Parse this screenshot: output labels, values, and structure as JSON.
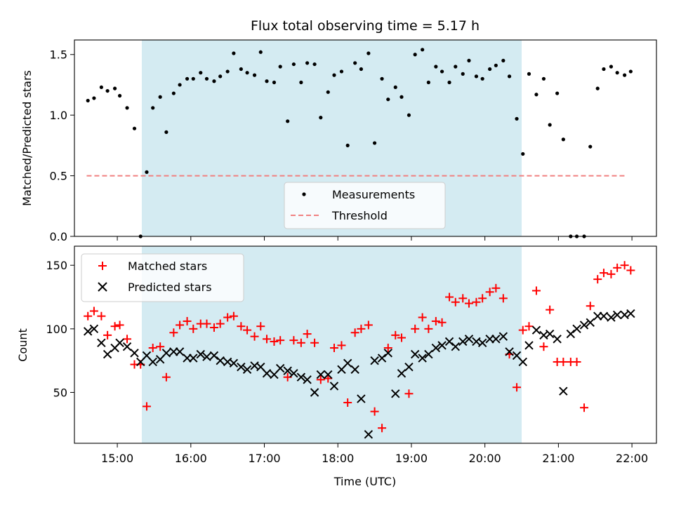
{
  "chart_data": [
    {
      "type": "scatter",
      "title": "Flux total observing time = 5.17 h",
      "xlabel": "",
      "ylabel": "Matched/Predicted stars",
      "ylim": [
        0,
        1.62
      ],
      "xlim": [
        "14:25",
        "22:20"
      ],
      "yticks": [
        0.0,
        0.5,
        1.0,
        1.5
      ],
      "ytick_labels": [
        "0.0",
        "0.5",
        "1.0",
        "1.5"
      ],
      "shaded_region": {
        "start": "15:20",
        "end": "20:30",
        "color": "#d4ebf2"
      },
      "threshold": {
        "name": "Threshold",
        "value": 0.5,
        "start": "14:35",
        "end": "21:55",
        "color": "#f08080"
      },
      "legend": {
        "position": "lower-center",
        "entries": [
          "Measurements",
          "Threshold"
        ]
      },
      "series": [
        {
          "name": "Measurements",
          "marker": "dot",
          "color": "#000000",
          "x": [
            "14:36",
            "14:41",
            "14:47",
            "14:52",
            "14:58",
            "15:02",
            "15:08",
            "15:14",
            "15:19",
            "15:24",
            "15:29",
            "15:35",
            "15:40",
            "15:46",
            "15:51",
            "15:57",
            "16:02",
            "16:08",
            "16:13",
            "16:19",
            "16:24",
            "16:30",
            "16:35",
            "16:41",
            "16:46",
            "16:52",
            "16:57",
            "17:02",
            "17:08",
            "17:13",
            "17:19",
            "17:24",
            "17:30",
            "17:35",
            "17:41",
            "17:46",
            "17:52",
            "17:57",
            "18:03",
            "18:08",
            "18:14",
            "18:19",
            "18:25",
            "18:30",
            "18:36",
            "18:41",
            "18:47",
            "18:52",
            "18:58",
            "19:03",
            "19:09",
            "19:14",
            "19:20",
            "19:25",
            "19:31",
            "19:36",
            "19:42",
            "19:47",
            "19:53",
            "19:58",
            "20:04",
            "20:09",
            "20:15",
            "20:20",
            "20:26",
            "20:31",
            "20:36",
            "20:42",
            "20:48",
            "20:53",
            "20:59",
            "21:04",
            "21:10",
            "21:15",
            "21:21",
            "21:26",
            "21:32",
            "21:37",
            "21:43",
            "21:48",
            "21:54",
            "21:59"
          ],
          "y": [
            1.12,
            1.14,
            1.23,
            1.2,
            1.22,
            1.16,
            1.06,
            0.89,
            0.0,
            0.53,
            1.06,
            1.15,
            0.86,
            1.18,
            1.25,
            1.3,
            1.3,
            1.35,
            1.3,
            1.28,
            1.32,
            1.36,
            1.51,
            1.38,
            1.35,
            1.33,
            1.52,
            1.28,
            1.27,
            1.4,
            0.95,
            1.42,
            1.27,
            1.43,
            1.42,
            0.98,
            1.19,
            1.33,
            1.36,
            0.75,
            1.43,
            1.38,
            1.51,
            0.77,
            1.3,
            1.13,
            1.23,
            1.15,
            1.0,
            1.5,
            1.54,
            1.27,
            1.4,
            1.36,
            1.27,
            1.4,
            1.34,
            1.45,
            1.32,
            1.3,
            1.38,
            1.41,
            1.45,
            1.32,
            0.97,
            0.68,
            1.34,
            1.17,
            1.3,
            0.92,
            1.18,
            0.8,
            0.0,
            0.0,
            0.0,
            0.74,
            1.22,
            1.38,
            1.4,
            1.35,
            1.33,
            1.36
          ]
        }
      ]
    },
    {
      "type": "scatter",
      "title": "",
      "xlabel": "Time (UTC)",
      "ylabel": "Count",
      "ylim": [
        10,
        165
      ],
      "xlim": [
        "14:25",
        "22:20"
      ],
      "yticks": [
        50,
        100,
        150
      ],
      "ytick_labels": [
        "50",
        "100",
        "150"
      ],
      "xtick_labels": [
        "15:00",
        "16:00",
        "17:00",
        "18:00",
        "19:00",
        "20:00",
        "21:00",
        "22:00"
      ],
      "shaded_region": {
        "start": "15:20",
        "end": "20:30",
        "color": "#d4ebf2"
      },
      "legend": {
        "position": "top-left",
        "entries": [
          "Matched stars",
          "Predicted stars"
        ]
      },
      "series": [
        {
          "name": "Matched stars",
          "marker": "plus",
          "color": "#ff0000",
          "x": [
            "14:36",
            "14:41",
            "14:47",
            "14:52",
            "14:58",
            "15:02",
            "15:08",
            "15:14",
            "15:19",
            "15:24",
            "15:29",
            "15:35",
            "15:40",
            "15:46",
            "15:51",
            "15:57",
            "16:02",
            "16:08",
            "16:13",
            "16:19",
            "16:24",
            "16:30",
            "16:35",
            "16:41",
            "16:46",
            "16:52",
            "16:57",
            "17:02",
            "17:08",
            "17:13",
            "17:19",
            "17:24",
            "17:30",
            "17:35",
            "17:41",
            "17:46",
            "17:52",
            "17:57",
            "18:03",
            "18:08",
            "18:14",
            "18:19",
            "18:25",
            "18:30",
            "18:36",
            "18:41",
            "18:47",
            "18:52",
            "18:58",
            "19:03",
            "19:09",
            "19:14",
            "19:20",
            "19:25",
            "19:31",
            "19:36",
            "19:42",
            "19:47",
            "19:53",
            "19:58",
            "20:04",
            "20:09",
            "20:15",
            "20:20",
            "20:26",
            "20:31",
            "20:36",
            "20:42",
            "20:48",
            "20:53",
            "20:59",
            "21:04",
            "21:10",
            "21:15",
            "21:21",
            "21:26",
            "21:32",
            "21:37",
            "21:43",
            "21:48",
            "21:54",
            "21:59"
          ],
          "y": [
            110,
            114,
            110,
            95,
            102,
            103,
            92,
            72,
            72,
            39,
            85,
            86,
            62,
            97,
            103,
            106,
            100,
            104,
            104,
            101,
            104,
            109,
            110,
            102,
            99,
            94,
            102,
            92,
            90,
            91,
            62,
            91,
            89,
            96,
            89,
            60,
            61,
            85,
            87,
            42,
            97,
            100,
            103,
            35,
            22,
            85,
            95,
            93,
            49,
            100,
            109,
            100,
            106,
            105,
            125,
            121,
            124,
            120,
            121,
            124,
            129,
            132,
            124,
            80,
            54,
            99,
            102,
            130,
            86,
            115,
            74,
            74,
            74,
            74,
            38,
            118,
            139,
            144,
            143,
            148,
            150,
            146
          ]
        },
        {
          "name": "Predicted stars",
          "marker": "x",
          "color": "#000000",
          "x": [
            "14:36",
            "14:41",
            "14:47",
            "14:52",
            "14:58",
            "15:02",
            "15:08",
            "15:14",
            "15:19",
            "15:24",
            "15:29",
            "15:35",
            "15:40",
            "15:46",
            "15:51",
            "15:57",
            "16:02",
            "16:08",
            "16:13",
            "16:19",
            "16:24",
            "16:30",
            "16:35",
            "16:41",
            "16:46",
            "16:52",
            "16:57",
            "17:02",
            "17:08",
            "17:13",
            "17:19",
            "17:24",
            "17:30",
            "17:35",
            "17:41",
            "17:46",
            "17:52",
            "17:57",
            "18:03",
            "18:08",
            "18:14",
            "18:19",
            "18:25",
            "18:30",
            "18:36",
            "18:41",
            "18:47",
            "18:52",
            "18:58",
            "19:03",
            "19:09",
            "19:14",
            "19:20",
            "19:25",
            "19:31",
            "19:36",
            "19:42",
            "19:47",
            "19:53",
            "19:58",
            "20:04",
            "20:09",
            "20:15",
            "20:20",
            "20:26",
            "20:31",
            "20:36",
            "20:42",
            "20:48",
            "20:53",
            "20:59",
            "21:04",
            "21:10",
            "21:15",
            "21:21",
            "21:26",
            "21:32",
            "21:37",
            "21:43",
            "21:48",
            "21:54",
            "21:59"
          ],
          "y": [
            98,
            100,
            89,
            80,
            85,
            89,
            86,
            81,
            74,
            79,
            74,
            76,
            81,
            82,
            82,
            77,
            77,
            80,
            78,
            79,
            75,
            74,
            73,
            70,
            68,
            71,
            70,
            65,
            64,
            69,
            67,
            65,
            62,
            60,
            50,
            64,
            64,
            55,
            68,
            73,
            68,
            45,
            17,
            75,
            77,
            81,
            49,
            65,
            70,
            80,
            77,
            80,
            85,
            87,
            90,
            86,
            90,
            92,
            90,
            89,
            92,
            92,
            94,
            82,
            79,
            74,
            87,
            99,
            95,
            96,
            92,
            51,
            96,
            100,
            103,
            105,
            110,
            110,
            109,
            111,
            111,
            112
          ]
        }
      ]
    }
  ]
}
